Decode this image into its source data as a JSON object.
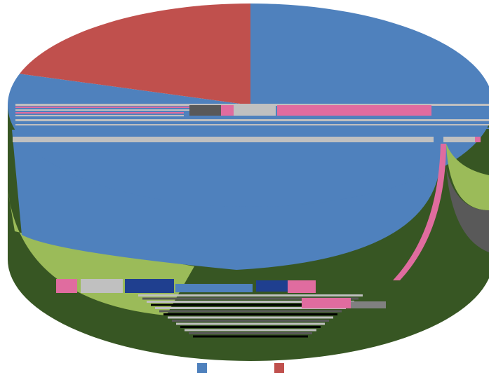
{
  "chart_data": {
    "type": "pie",
    "style": "3d-pie",
    "title": "",
    "slices": [
      {
        "label": "",
        "value": 80,
        "color": "#4f81bd"
      },
      {
        "label": "",
        "value": 20,
        "color": "#c0504d"
      }
    ],
    "legend_placement": "bottom",
    "render_artifacts": {
      "palette": [
        "#4f81bd",
        "#c0504d",
        "#9bbb59",
        "#c0c0c0",
        "#595959",
        "#e06c9f",
        "#1f3f8f",
        "#375623",
        "#000000",
        "#808080"
      ]
    }
  }
}
